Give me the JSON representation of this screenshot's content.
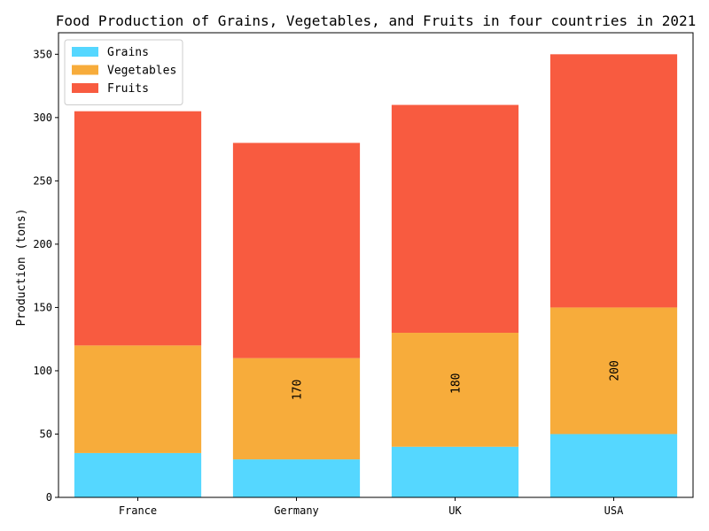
{
  "chart_data": {
    "type": "bar",
    "stacked": true,
    "title": "Food Production of Grains, Vegetables, and Fruits in four countries in 2021",
    "xlabel": "",
    "ylabel": "Production (tons)",
    "categories": [
      "France",
      "Germany",
      "UK",
      "USA"
    ],
    "ylim": [
      0,
      367
    ],
    "yticks": [
      0,
      50,
      100,
      150,
      200,
      250,
      300,
      350
    ],
    "series": [
      {
        "name": "Grains",
        "color": "#55d7ff",
        "values": [
          35,
          30,
          40,
          50
        ]
      },
      {
        "name": "Vegetables",
        "color": "#f7ac3b",
        "values": [
          85,
          80,
          90,
          100
        ]
      },
      {
        "name": "Fruits",
        "color": "#f85b40",
        "values": [
          185,
          170,
          180,
          200
        ]
      }
    ],
    "annotations": [
      {
        "category": "Germany",
        "text": "170",
        "y": 85
      },
      {
        "category": "UK",
        "text": "180",
        "y": 90
      },
      {
        "category": "USA",
        "text": "200",
        "y": 100
      }
    ],
    "legend": {
      "position": "top-left"
    }
  }
}
